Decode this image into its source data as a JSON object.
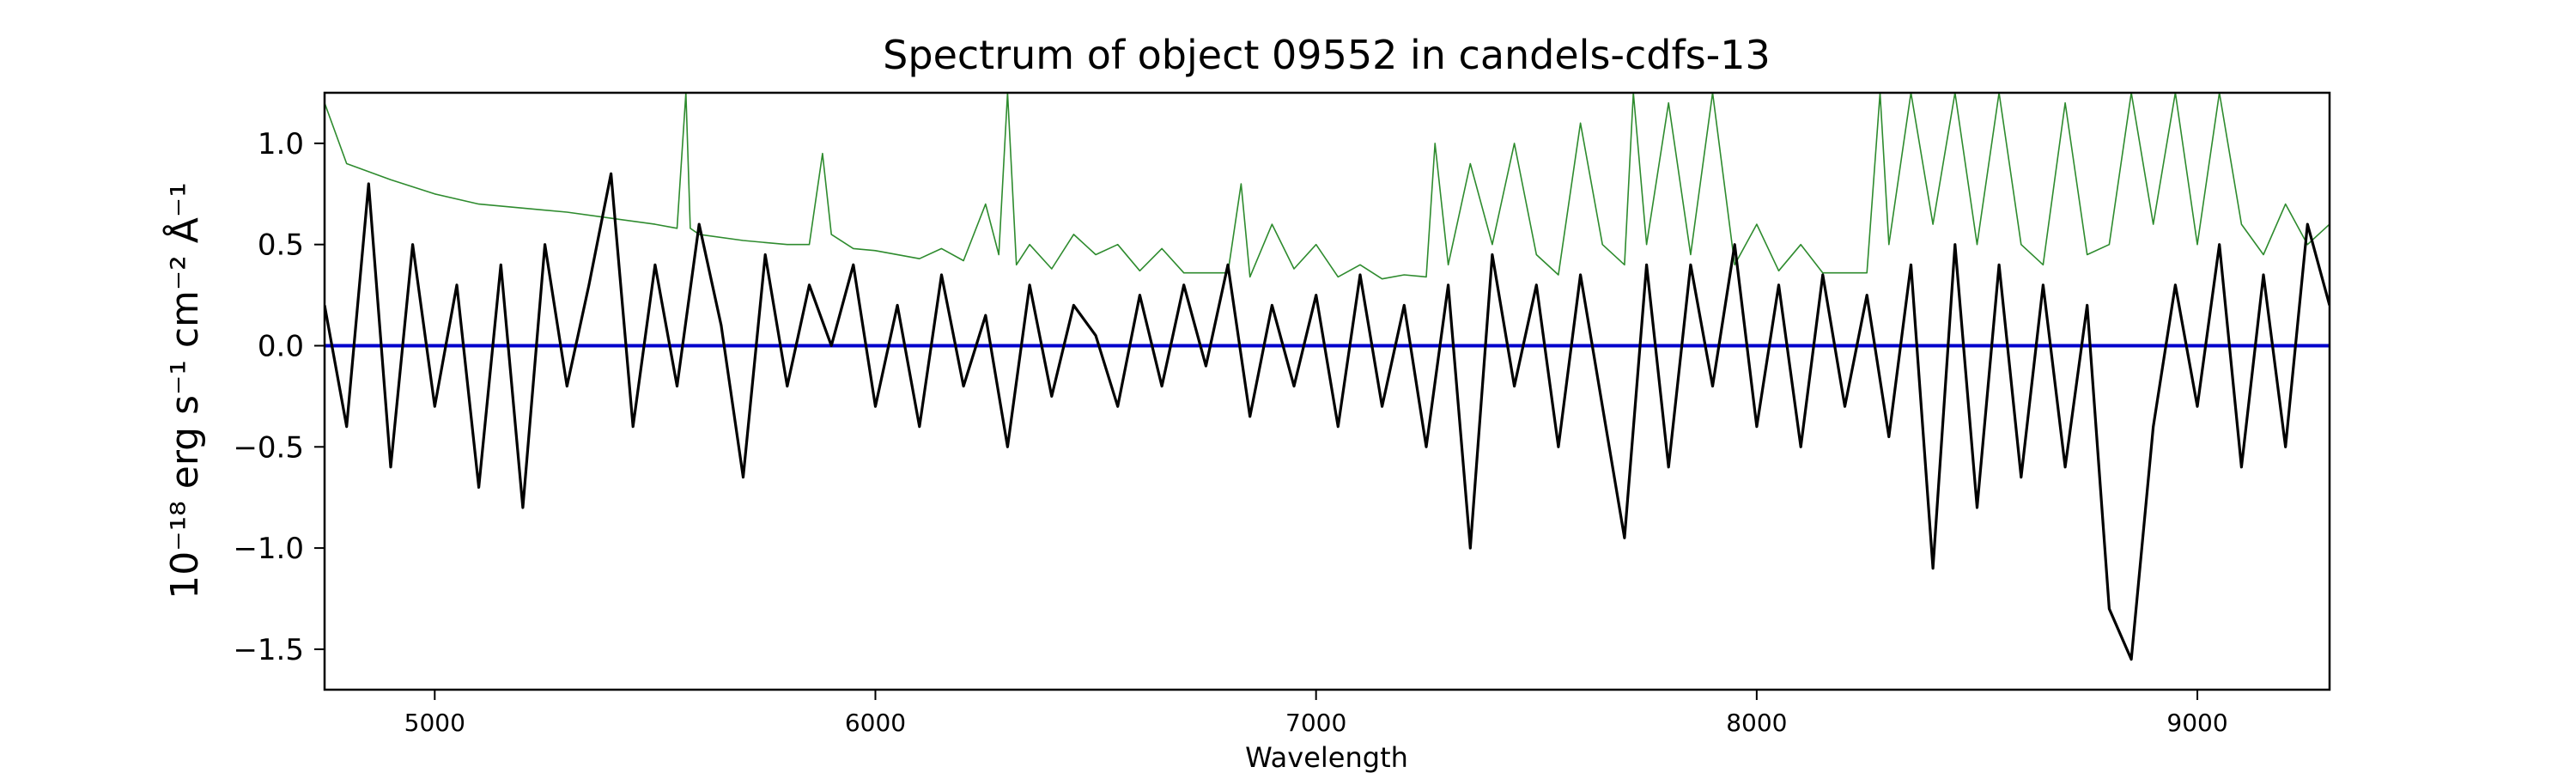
{
  "chart_data": {
    "type": "line",
    "title": "Spectrum of object 09552 in candels-cdfs-13",
    "xlabel": "Wavelength",
    "ylabel": "10⁻¹⁸ erg s⁻¹ cm⁻² Å⁻¹",
    "xlim": [
      4750,
      9300
    ],
    "ylim": [
      -1.7,
      1.25
    ],
    "xticks": [
      5000,
      6000,
      7000,
      8000,
      9000
    ],
    "yticks": [
      1.0,
      0.5,
      0.0,
      -0.5,
      -1.0,
      -1.5
    ],
    "grid": false,
    "colors": {
      "flux": "#000000",
      "error": "#2e8b2e",
      "model": "#0000cc"
    },
    "series": [
      {
        "x": [
          4750,
          4800,
          4850,
          4900,
          4950,
          5000,
          5050,
          5100,
          5150,
          5200,
          5250,
          5300,
          5350,
          5400,
          5450,
          5500,
          5550,
          5600,
          5650,
          5700,
          5750,
          5800,
          5850,
          5900,
          5950,
          6000,
          6050,
          6100,
          6150,
          6200,
          6250,
          6300,
          6350,
          6400,
          6450,
          6500,
          6550,
          6600,
          6650,
          6700,
          6750,
          6800,
          6850,
          6900,
          6950,
          7000,
          7050,
          7100,
          7150,
          7200,
          7250,
          7300,
          7350,
          7400,
          7450,
          7500,
          7550,
          7600,
          7650,
          7700,
          7750,
          7800,
          7850,
          7900,
          7950,
          8000,
          8050,
          8100,
          8150,
          8200,
          8250,
          8300,
          8350,
          8400,
          8450,
          8500,
          8550,
          8600,
          8650,
          8700,
          8750,
          8800,
          8850,
          8900,
          8950,
          9000,
          9050,
          9100,
          9150,
          9200,
          9250,
          9300
        ],
        "values": [
          0.2,
          -0.4,
          0.8,
          -0.6,
          0.5,
          -0.3,
          0.3,
          -0.7,
          0.4,
          -0.8,
          0.5,
          -0.2,
          0.3,
          0.85,
          -0.4,
          0.4,
          -0.2,
          0.6,
          0.1,
          -0.65,
          0.45,
          -0.2,
          0.3,
          0.0,
          0.4,
          -0.3,
          0.2,
          -0.4,
          0.35,
          -0.2,
          0.15,
          -0.5,
          0.3,
          -0.25,
          0.2,
          0.05,
          -0.3,
          0.25,
          -0.2,
          0.3,
          -0.1,
          0.4,
          -0.35,
          0.2,
          -0.2,
          0.25,
          -0.4,
          0.35,
          -0.3,
          0.2,
          -0.5,
          0.3,
          -1.0,
          0.45,
          -0.2,
          0.3,
          -0.5,
          0.35,
          -0.3,
          -0.95,
          0.4,
          -0.6,
          0.4,
          -0.2,
          0.5,
          -0.4,
          0.3,
          -0.5,
          0.35,
          -0.3,
          0.25,
          -0.45,
          0.4,
          -1.1,
          0.5,
          -0.8,
          0.4,
          -0.65,
          0.3,
          -0.6,
          0.2,
          -1.3,
          -1.55,
          -0.4,
          0.3,
          -0.3,
          0.5,
          -0.6,
          0.35,
          -0.5,
          0.6,
          0.2
        ]
      },
      {
        "x": [
          4750,
          4800,
          4900,
          5000,
          5100,
          5200,
          5300,
          5400,
          5500,
          5550,
          5570,
          5580,
          5600,
          5700,
          5800,
          5850,
          5880,
          5900,
          5950,
          6000,
          6100,
          6150,
          6200,
          6250,
          6280,
          6300,
          6320,
          6350,
          6400,
          6450,
          6500,
          6550,
          6600,
          6650,
          6700,
          6800,
          6830,
          6850,
          6900,
          6950,
          7000,
          7050,
          7100,
          7150,
          7200,
          7250,
          7270,
          7300,
          7350,
          7400,
          7450,
          7500,
          7550,
          7600,
          7650,
          7700,
          7720,
          7750,
          7800,
          7850,
          7900,
          7950,
          8000,
          8050,
          8100,
          8150,
          8200,
          8250,
          8280,
          8300,
          8350,
          8400,
          8450,
          8500,
          8550,
          8600,
          8650,
          8700,
          8750,
          8800,
          8850,
          8900,
          8950,
          9000,
          9050,
          9100,
          9150,
          9200,
          9250,
          9300
        ],
        "values": [
          1.2,
          0.9,
          0.82,
          0.75,
          0.7,
          0.68,
          0.66,
          0.63,
          0.6,
          0.58,
          1.25,
          0.58,
          0.55,
          0.52,
          0.5,
          0.5,
          0.95,
          0.55,
          0.48,
          0.47,
          0.43,
          0.48,
          0.42,
          0.7,
          0.45,
          1.25,
          0.4,
          0.5,
          0.38,
          0.55,
          0.45,
          0.5,
          0.37,
          0.48,
          0.36,
          0.36,
          0.8,
          0.34,
          0.6,
          0.38,
          0.5,
          0.34,
          0.4,
          0.33,
          0.35,
          0.34,
          1.0,
          0.4,
          0.9,
          0.5,
          1.0,
          0.45,
          0.35,
          1.1,
          0.5,
          0.4,
          1.25,
          0.5,
          1.2,
          0.45,
          1.25,
          0.4,
          0.6,
          0.37,
          0.5,
          0.36,
          0.36,
          0.36,
          1.25,
          0.5,
          1.25,
          0.6,
          1.25,
          0.5,
          1.25,
          0.5,
          0.4,
          1.2,
          0.45,
          0.5,
          1.25,
          0.6,
          1.25,
          0.5,
          1.25,
          0.6,
          0.45,
          0.7,
          0.5,
          0.6
        ]
      },
      {
        "x": [
          4750,
          9300
        ],
        "values": [
          0.0,
          0.0
        ]
      }
    ]
  }
}
